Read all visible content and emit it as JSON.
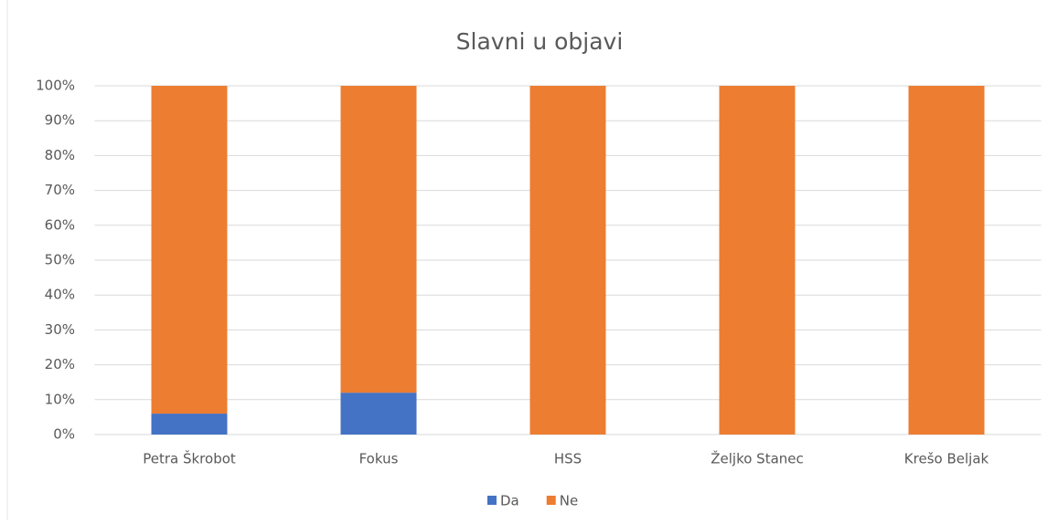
{
  "chart_data": {
    "type": "stacked_bar_100",
    "title": "Slavni u objavi",
    "categories": [
      "Petra Škrobot",
      "Fokus",
      "HSS",
      "Željko Stanec",
      "Krešo Beljak"
    ],
    "series": [
      {
        "name": "Da",
        "color": "#4472c4",
        "values": [
          6,
          12,
          0,
          0,
          0
        ]
      },
      {
        "name": "Ne",
        "color": "#ed7d31",
        "values": [
          94,
          88,
          100,
          100,
          100
        ]
      }
    ],
    "ylim": [
      0,
      100
    ],
    "yticks": [
      {
        "value": 0,
        "label": "0%"
      },
      {
        "value": 10,
        "label": "10%"
      },
      {
        "value": 20,
        "label": "20%"
      },
      {
        "value": 30,
        "label": "30%"
      },
      {
        "value": 40,
        "label": "40%"
      },
      {
        "value": 50,
        "label": "50%"
      },
      {
        "value": 60,
        "label": "60%"
      },
      {
        "value": 70,
        "label": "70%"
      },
      {
        "value": 80,
        "label": "80%"
      },
      {
        "value": 90,
        "label": "90%"
      },
      {
        "value": 100,
        "label": "100%"
      }
    ],
    "grid": true,
    "legend": "bottom"
  }
}
